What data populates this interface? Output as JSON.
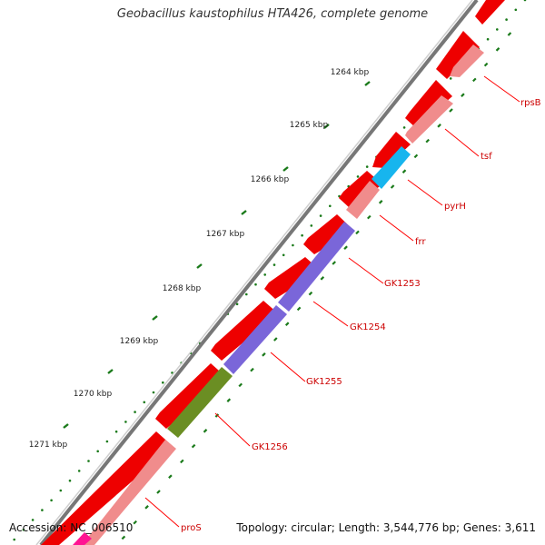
{
  "title": "Geobacillus kaustophilus HTA426, complete genome",
  "footer": {
    "accession": "Accession: NC_006510",
    "stats": "Topology: circular; Length: 3,544,776 bp; Genes: 3,611"
  },
  "colors": {
    "backbone": "#777777",
    "forward_gene": "#ee0000",
    "reverse_gene_default": "#f08c8c",
    "pyrH": "#17b5ee",
    "GK1253": "#7a66d9",
    "GK1254": "#7a66d9",
    "GK1255": "#7a66d9",
    "GK1256": "#6b8e23",
    "proS_tail": "#ff1493",
    "ticks": "#1a7a1a",
    "label_text": "#cc0000",
    "label_line": "#ff0000"
  },
  "scale_labels": [
    "1264 kbp",
    "1265 kbp",
    "1266 kbp",
    "1267 kbp",
    "1268 kbp",
    "1269 kbp",
    "1270 kbp",
    "1271 kbp"
  ],
  "gene_labels": [
    "rpsB",
    "tsf",
    "pyrH",
    "frr",
    "GK1253",
    "GK1254",
    "GK1255",
    "GK1256",
    "proS"
  ]
}
